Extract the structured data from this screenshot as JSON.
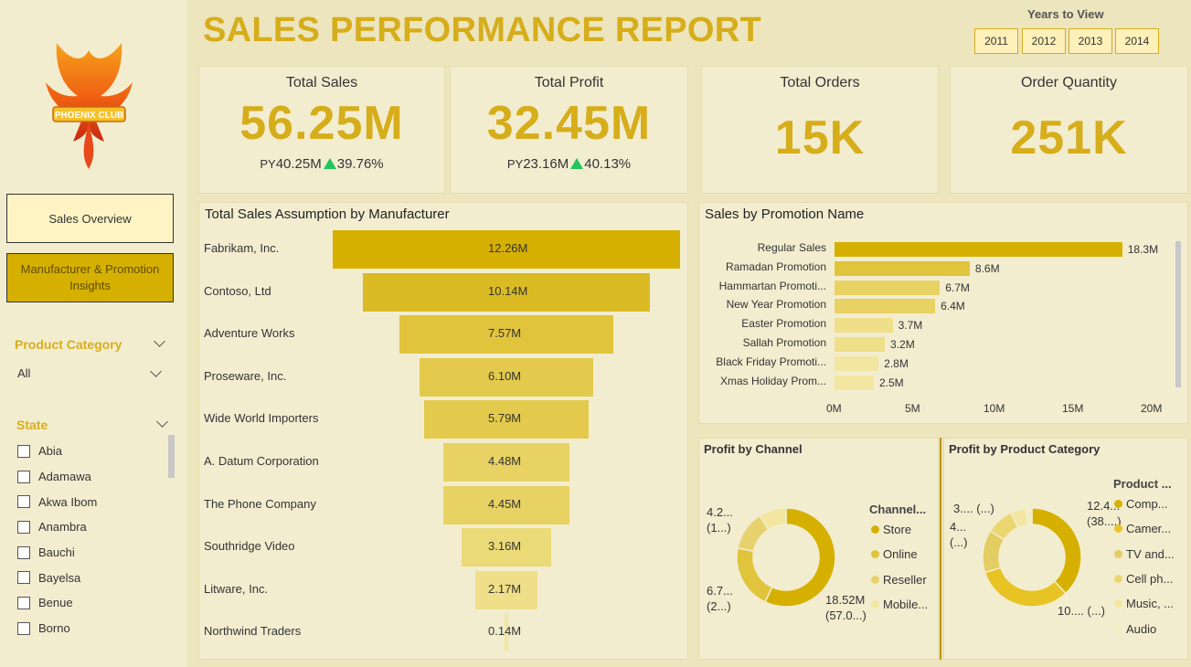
{
  "colors": {
    "accent": "#d6ad1a",
    "gold": "#d6b000",
    "background": "#ede5bd",
    "panel": "#f3edd0",
    "up": "#22c55e"
  },
  "sidebar": {
    "logo_text": "PHOENIX CLUB",
    "nav": [
      {
        "label": "Sales Overview",
        "active": true
      },
      {
        "label": "Manufacturer & Promotion Insights",
        "active": false
      }
    ],
    "product_category": {
      "title": "Product Category",
      "value": "All"
    },
    "state": {
      "title": "State",
      "items": [
        "Abia",
        "Adamawa",
        "Akwa Ibom",
        "Anambra",
        "Bauchi",
        "Bayelsa",
        "Benue",
        "Borno"
      ]
    }
  },
  "header": {
    "title": "SALES PERFORMANCE REPORT",
    "years_label": "Years to View",
    "years": [
      "2011",
      "2012",
      "2013",
      "2014"
    ]
  },
  "kpis": {
    "total_sales": {
      "title": "Total Sales",
      "value": "56.25M",
      "py_label": "PY",
      "py_value": "40.25M",
      "change": "39.76%"
    },
    "total_profit": {
      "title": "Total Profit",
      "value": "32.45M",
      "py_label": "PY",
      "py_value": "23.16M",
      "change": "40.13%"
    },
    "total_orders": {
      "title": "Total Orders",
      "value": "15K"
    },
    "order_quantity": {
      "title": "Order Quantity",
      "value": "251K"
    }
  },
  "manufacturer_funnel": {
    "title": "Total Sales Assumption by Manufacturer",
    "chart_data": {
      "type": "bar",
      "categories": [
        "Fabrikam, Inc.",
        "Contoso, Ltd",
        "Adventure Works",
        "Proseware, Inc.",
        "Wide World Importers",
        "A. Datum Corporation",
        "The Phone Company",
        "Southridge Video",
        "Litware, Inc.",
        "Northwind Traders"
      ],
      "values": [
        12.26,
        10.14,
        7.57,
        6.1,
        5.79,
        4.48,
        4.45,
        3.16,
        2.17,
        0.14
      ],
      "labels": [
        "12.26M",
        "10.14M",
        "7.57M",
        "6.10M",
        "5.79M",
        "4.48M",
        "4.45M",
        "3.16M",
        "2.17M",
        "0.14M"
      ],
      "colors": [
        "#d6b000",
        "#dbbb24",
        "#e0c43c",
        "#e3ca4c",
        "#e3ca4c",
        "#e7d263",
        "#e7d263",
        "#ebda78",
        "#eedf88",
        "#f2e6a0"
      ]
    }
  },
  "promotion_chart": {
    "title": "Sales by Promotion Name",
    "chart_data": {
      "type": "bar",
      "categories": [
        "Regular Sales",
        "Ramadan Promotion",
        "Hammartan Promoti...",
        "New Year Promotion",
        "Easter Promotion",
        "Sallah Promotion",
        "Black Friday Promoti...",
        "Xmas Holiday Prom..."
      ],
      "values": [
        18.3,
        8.6,
        6.7,
        6.4,
        3.7,
        3.2,
        2.8,
        2.5
      ],
      "labels": [
        "18.3M",
        "8.6M",
        "6.7M",
        "6.4M",
        "3.7M",
        "3.2M",
        "2.8M",
        "2.5M"
      ],
      "xticks": [
        "0M",
        "5M",
        "10M",
        "15M",
        "20M"
      ],
      "xlim": [
        0,
        20
      ],
      "colors": [
        "#d6b000",
        "#e0c43c",
        "#e7d263",
        "#e7d263",
        "#eedf88",
        "#eedf88",
        "#f2e6a0",
        "#f2e6a0"
      ]
    }
  },
  "profit_by_channel": {
    "title": "Profit by Channel",
    "legend_title": "Channel...",
    "chart_data": {
      "type": "pie",
      "categories": [
        "Store",
        "Online",
        "Reseller",
        "Mobile..."
      ],
      "values": [
        57.0,
        21.0,
        13.0,
        9.0
      ],
      "colors": [
        "#d6b000",
        "#e0c43c",
        "#e8d26e",
        "#f2e6a0"
      ]
    },
    "data_labels": [
      [
        "18.52M",
        "(57.0...)"
      ],
      [
        "6.7...",
        "(2...)"
      ],
      [
        "4.2...",
        "(1...)"
      ]
    ]
  },
  "profit_by_category": {
    "title": "Profit by Product Category",
    "legend_title": "Product ...",
    "chart_data": {
      "type": "pie",
      "categories": [
        "Comp...",
        "Camer...",
        "TV and...",
        "Cell ph...",
        "Music, ...",
        "Audio"
      ],
      "values": [
        38.0,
        32.0,
        14.0,
        9.0,
        5.0,
        2.0
      ],
      "colors": [
        "#d6b000",
        "#e8c324",
        "#e4cd63",
        "#ebd670",
        "#f2e6a0",
        "#f4ecc2"
      ]
    },
    "data_labels": [
      [
        "12.4...",
        "(38....)"
      ],
      [
        "10.... (...)"
      ],
      [
        "4...",
        "(...)"
      ],
      [
        "3.... (...)"
      ]
    ]
  }
}
